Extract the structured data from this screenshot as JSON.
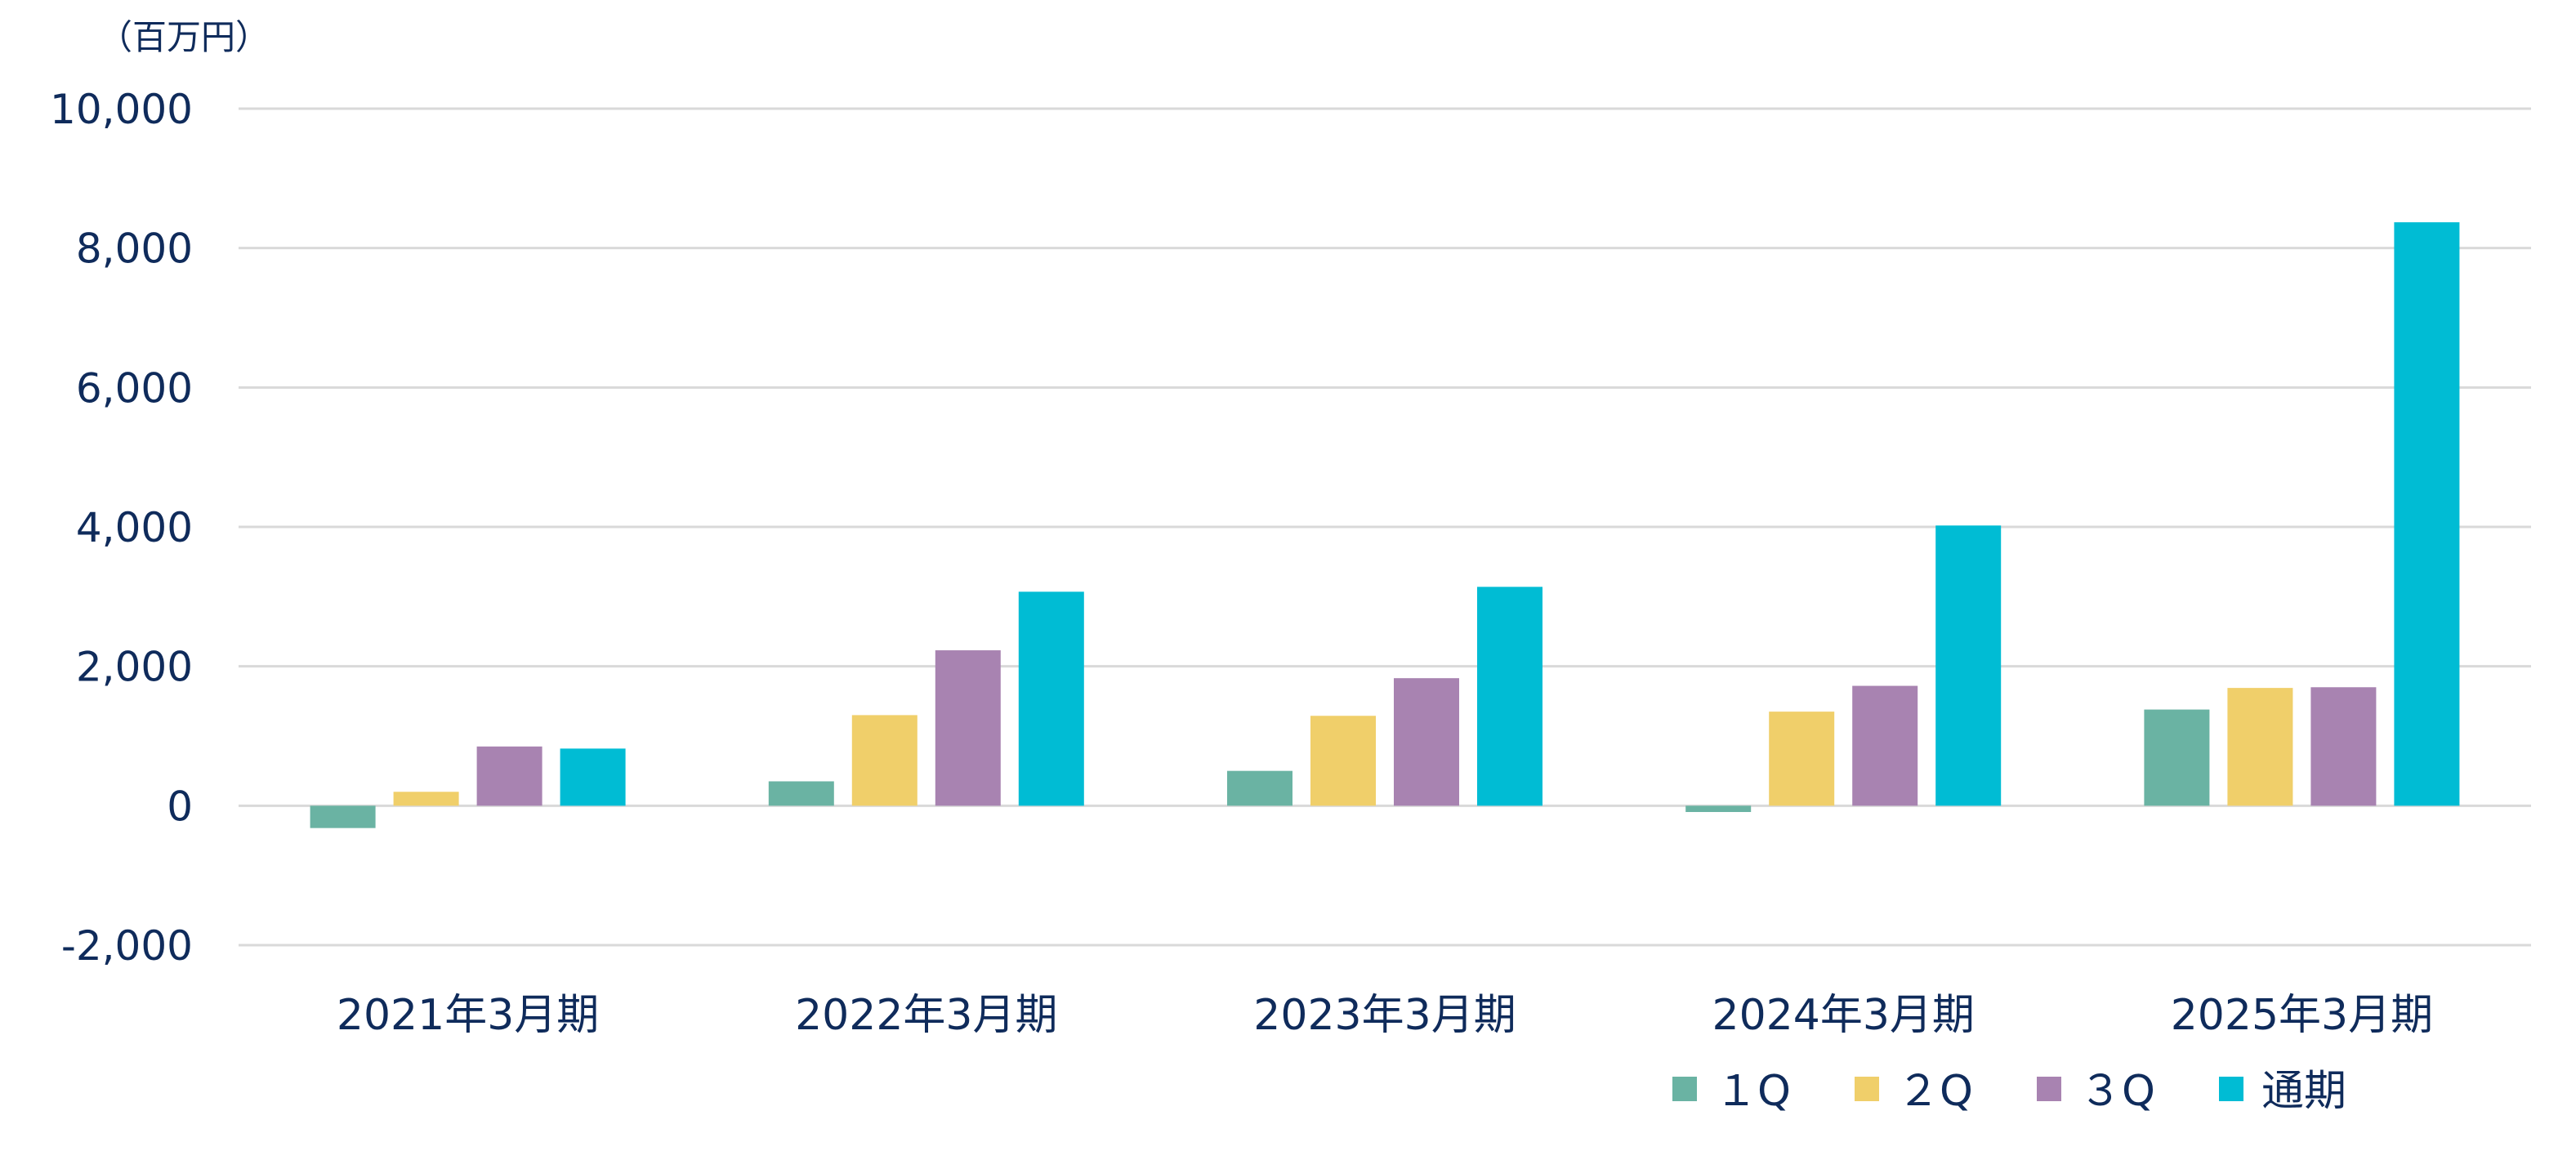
{
  "chart_data": {
    "type": "bar",
    "unit_label": "（百万円）",
    "categories": [
      "2021年3月期",
      "2022年3月期",
      "2023年3月期",
      "2024年3月期",
      "2025年3月期"
    ],
    "series": [
      {
        "name": "1Q",
        "legend_label": "１Q",
        "color": "#6ab3a3",
        "values": [
          -320,
          350,
          500,
          -90,
          1380
        ]
      },
      {
        "name": "2Q",
        "legend_label": "２Q",
        "color": "#f0cf6a",
        "values": [
          200,
          1300,
          1290,
          1350,
          1690
        ]
      },
      {
        "name": "3Q",
        "legend_label": "３Q",
        "color": "#a883b1",
        "values": [
          850,
          2230,
          1830,
          1720,
          1700
        ]
      },
      {
        "name": "通期",
        "legend_label": "通期",
        "color": "#00bcd4",
        "values": [
          820,
          3070,
          3140,
          4020,
          8370
        ]
      }
    ],
    "ylim": [
      -2000,
      10000
    ],
    "yticks": [
      10000,
      8000,
      6000,
      4000,
      2000,
      0,
      -2000
    ],
    "ytick_labels": [
      "10,000",
      "8,000",
      "6,000",
      "4,000",
      "2,000",
      "0",
      "-2,000"
    ],
    "grid": true,
    "legend_position": "bottom-right",
    "title": "",
    "xlabel": "",
    "ylabel": ""
  }
}
